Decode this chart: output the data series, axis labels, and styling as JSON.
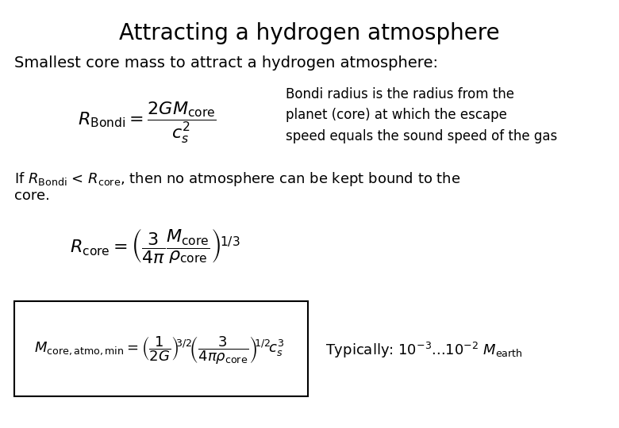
{
  "title": "Attracting a hydrogen atmosphere",
  "subtitle": "Smallest core mass to attract a hydrogen atmosphere:",
  "bondi_text": "Bondi radius is the radius from the\nplanet (core) at which the escape\nspeed equals the sound speed of the gas",
  "condition_line1": "If $R_{\\mathrm{Bondi}}$ < $R_{\\mathrm{core}}$, then no atmosphere can be kept bound to the",
  "condition_line2": "core.",
  "typically_text": "Typically: $10^{-3}$...$10^{-2}$ $M_{\\mathrm{earth}}$",
  "bg_color": "#ffffff",
  "text_color": "#000000",
  "title_fontsize": 20,
  "subtitle_fontsize": 14,
  "body_fontsize": 13,
  "bondi_text_fontsize": 12,
  "eq_fontsize": 14,
  "typically_fontsize": 13
}
